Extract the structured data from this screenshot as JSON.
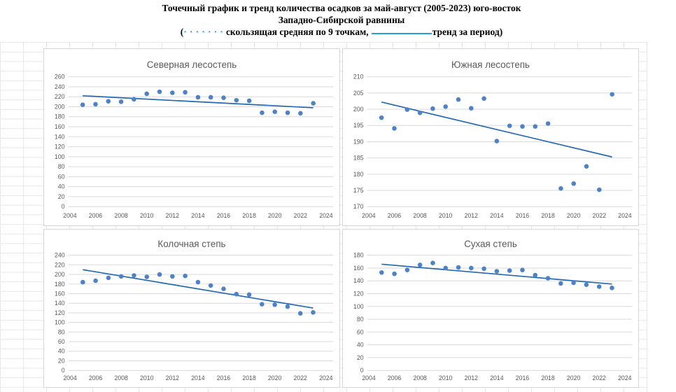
{
  "title": {
    "line1": "Точечный график и тренд количества осадков за май-август (2005-2023) юго-восток",
    "line2": "Западно-Сибирской равнины",
    "line3_open": "(",
    "line3_dots": "·······",
    "line3_moving_avg": "скользящая средняя по 9 точкам,",
    "line3_trend": "тренд за период)"
  },
  "colors": {
    "marker": "#4e82c6",
    "trend_line": "#2268b4",
    "gridline": "#d9d9d9",
    "axis_text": "#595959",
    "chart_title_text": "#595959",
    "panel_border": "#d6d6d6",
    "legend_accent": "#1f9fe0"
  },
  "chart_data": [
    {
      "type": "scatter",
      "title": "Северная лесостепь",
      "xlabel": "",
      "ylabel": "",
      "xlim": [
        2004,
        2024
      ],
      "xstep": 2,
      "ylim": [
        0,
        260
      ],
      "ystep": 20,
      "grid": "horizontal",
      "legend": "none",
      "x": [
        2005,
        2006,
        2007,
        2008,
        2009,
        2010,
        2011,
        2012,
        2013,
        2014,
        2015,
        2016,
        2017,
        2018,
        2019,
        2020,
        2021,
        2022,
        2023
      ],
      "values": [
        204,
        205,
        211,
        210,
        215,
        226,
        230,
        228,
        229,
        219,
        219,
        218,
        213,
        212,
        188,
        190,
        188,
        187,
        207
      ],
      "trend": {
        "x": [
          2005,
          2023
        ],
        "y": [
          222,
          198
        ]
      }
    },
    {
      "type": "scatter",
      "title": "Южная лесостепь",
      "xlabel": "",
      "ylabel": "",
      "xlim": [
        2004,
        2024
      ],
      "xstep": 2,
      "ylim": [
        170,
        210
      ],
      "ystep": 5,
      "grid": "horizontal",
      "legend": "none",
      "x": [
        2005,
        2006,
        2007,
        2008,
        2009,
        2010,
        2011,
        2012,
        2013,
        2014,
        2015,
        2016,
        2017,
        2018,
        2019,
        2020,
        2021,
        2022,
        2023
      ],
      "values": [
        197.4,
        194.1,
        199.9,
        198.9,
        200.2,
        200.8,
        203.0,
        200.3,
        203.3,
        190.2,
        194.9,
        194.7,
        194.7,
        195.6,
        175.6,
        177.1,
        182.4,
        175.2,
        204.6
      ],
      "trend": {
        "x": [
          2005,
          2023
        ],
        "y": [
          202.2,
          185.3
        ]
      }
    },
    {
      "type": "scatter",
      "title": "Колочная степь",
      "xlabel": "",
      "ylabel": "",
      "xlim": [
        2004,
        2024
      ],
      "xstep": 2,
      "ylim": [
        0,
        240
      ],
      "ystep": 20,
      "grid": "horizontal",
      "legend": "none",
      "x": [
        2005,
        2006,
        2007,
        2008,
        2009,
        2010,
        2011,
        2012,
        2013,
        2014,
        2015,
        2016,
        2017,
        2018,
        2019,
        2020,
        2021,
        2022,
        2023
      ],
      "values": [
        184,
        187,
        193,
        196,
        198,
        195,
        200,
        196,
        197,
        184,
        177,
        170,
        159,
        158,
        138,
        137,
        133,
        119,
        121
      ],
      "trend": {
        "x": [
          2005,
          2023
        ],
        "y": [
          210,
          130
        ]
      }
    },
    {
      "type": "scatter",
      "title": "Сухая степь",
      "xlabel": "",
      "ylabel": "",
      "xlim": [
        2004,
        2024
      ],
      "xstep": 2,
      "ylim": [
        0,
        180
      ],
      "ystep": 20,
      "grid": "horizontal",
      "legend": "none",
      "x": [
        2005,
        2006,
        2007,
        2008,
        2009,
        2010,
        2011,
        2012,
        2013,
        2014,
        2015,
        2016,
        2017,
        2018,
        2019,
        2020,
        2021,
        2022,
        2023
      ],
      "values": [
        153,
        151,
        157,
        165,
        168,
        160,
        161,
        160,
        159,
        155,
        156,
        157,
        149,
        144,
        136,
        137,
        134,
        131,
        129
      ],
      "trend": {
        "x": [
          2005,
          2023
        ],
        "y": [
          166,
          135
        ]
      }
    }
  ]
}
